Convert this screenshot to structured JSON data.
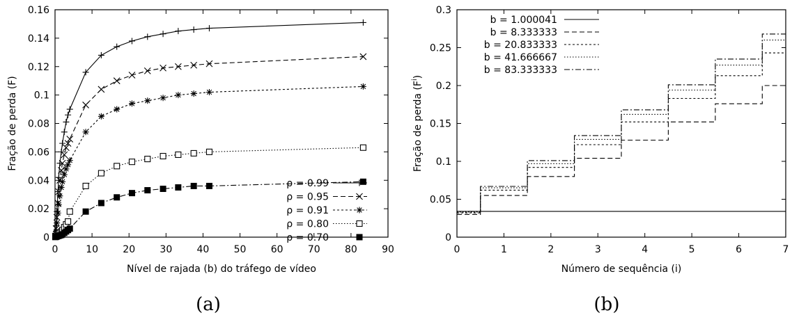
{
  "chart_data": [
    {
      "type": "line",
      "caption": "(a)",
      "xlabel": "Nível de rajada (b) do tráfego de vídeo",
      "ylabel": "Fração de perda (F)",
      "xlim": [
        0,
        90
      ],
      "ylim": [
        0,
        0.16
      ],
      "xticks": [
        "0",
        "10",
        "20",
        "30",
        "40",
        "50",
        "60",
        "70",
        "80",
        "90"
      ],
      "yticks": [
        "0",
        "0.02",
        "0.04",
        "0.06",
        "0.08",
        "0.1",
        "0.12",
        "0.14",
        "0.16"
      ],
      "legend_position": "bottom-right",
      "x": [
        0.1,
        0.3,
        0.5,
        0.8,
        1.0,
        1.3,
        1.7,
        2.0,
        2.5,
        3.0,
        3.5,
        4.0,
        8.3,
        12.5,
        16.7,
        20.8,
        25.0,
        29.2,
        33.3,
        37.5,
        41.7,
        83.3
      ],
      "series": [
        {
          "name": "ρ = 0.99",
          "marker": "plus",
          "dash": "",
          "values": [
            0.001,
            0.008,
            0.018,
            0.032,
            0.042,
            0.052,
            0.06,
            0.066,
            0.074,
            0.081,
            0.086,
            0.09,
            0.116,
            0.128,
            0.134,
            0.138,
            0.141,
            0.143,
            0.145,
            0.146,
            0.147,
            0.151
          ]
        },
        {
          "name": "ρ = 0.95",
          "marker": "cross",
          "dash": "7,4",
          "values": [
            0.0008,
            0.006,
            0.014,
            0.024,
            0.032,
            0.04,
            0.047,
            0.052,
            0.058,
            0.063,
            0.066,
            0.069,
            0.093,
            0.104,
            0.11,
            0.114,
            0.117,
            0.119,
            0.12,
            0.121,
            0.122,
            0.127
          ]
        },
        {
          "name": "ρ = 0.91",
          "marker": "star",
          "dash": "3,3",
          "values": [
            0.0005,
            0.004,
            0.01,
            0.017,
            0.023,
            0.029,
            0.035,
            0.039,
            0.044,
            0.048,
            0.051,
            0.054,
            0.074,
            0.085,
            0.09,
            0.094,
            0.096,
            0.098,
            0.1,
            0.101,
            0.102,
            0.106
          ]
        },
        {
          "name": "ρ = 0.80",
          "marker": "square-open",
          "dash": "1.5,2.5",
          "values": [
            0.0002,
            0.0008,
            0.0015,
            0.002,
            0.0025,
            0.003,
            0.004,
            0.005,
            0.007,
            0.009,
            0.011,
            0.018,
            0.036,
            0.045,
            0.05,
            0.053,
            0.055,
            0.057,
            0.058,
            0.059,
            0.06,
            0.063
          ]
        },
        {
          "name": "ρ = 0.70",
          "marker": "square-filled",
          "dash": "8,3,2,3",
          "values": [
            0.0001,
            0.0003,
            0.0005,
            0.0008,
            0.001,
            0.0012,
            0.0015,
            0.002,
            0.003,
            0.004,
            0.005,
            0.006,
            0.018,
            0.024,
            0.028,
            0.031,
            0.033,
            0.034,
            0.035,
            0.036,
            0.036,
            0.039
          ]
        }
      ]
    },
    {
      "type": "line",
      "caption": "(b)",
      "xlabel": "Número de sequência (i)",
      "ylabel_main": "Fração de perda (F",
      "ylabel_sup": "i",
      "ylabel_end": ")",
      "xlim": [
        0,
        7
      ],
      "ylim": [
        0,
        0.3
      ],
      "xticks": [
        "0",
        "1",
        "2",
        "3",
        "4",
        "5",
        "6",
        "7"
      ],
      "yticks": [
        "0",
        "0.05",
        "0.1",
        "0.15",
        "0.2",
        "0.25",
        "0.3"
      ],
      "legend_position": "top-left",
      "step_edges": [
        0,
        0.5,
        1.5,
        2.5,
        3.5,
        4.5,
        5.5,
        6.5,
        7
      ],
      "series": [
        {
          "name": "b = 1.000041",
          "dash": "",
          "values": [
            0.034,
            0.034,
            0.034,
            0.034,
            0.034,
            0.034,
            0.034,
            0.034
          ]
        },
        {
          "name": "b = 8.333333",
          "dash": "7,4",
          "values": [
            0.03,
            0.055,
            0.08,
            0.104,
            0.128,
            0.152,
            0.176,
            0.2
          ]
        },
        {
          "name": "b = 20.833333",
          "dash": "3,3",
          "values": [
            0.032,
            0.062,
            0.092,
            0.122,
            0.152,
            0.183,
            0.213,
            0.243
          ]
        },
        {
          "name": "b = 41.666667",
          "dash": "1.5,2.5",
          "values": [
            0.033,
            0.065,
            0.097,
            0.129,
            0.162,
            0.194,
            0.227,
            0.26
          ]
        },
        {
          "name": "b = 83.333333",
          "dash": "8,3,2,3",
          "values": [
            0.034,
            0.067,
            0.101,
            0.134,
            0.168,
            0.201,
            0.235,
            0.268
          ]
        }
      ]
    }
  ]
}
